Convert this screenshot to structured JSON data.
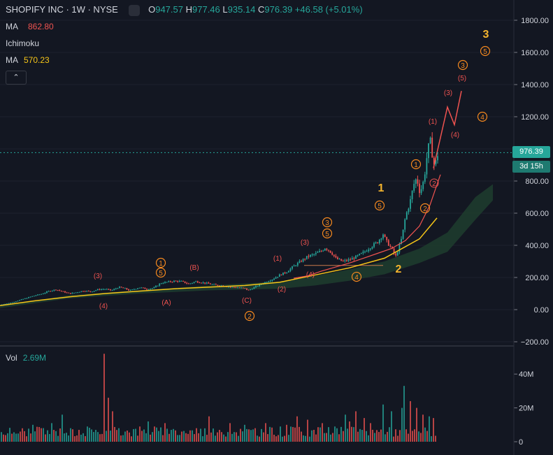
{
  "legend": {
    "symbol": "SHOPIFY INC · 1W · NYSE",
    "open_label": "O",
    "open": "947.57",
    "high_label": "H",
    "high": "977.46",
    "low_label": "L",
    "low": "935.14",
    "close_label": "C",
    "close": "976.39",
    "change": "+46.58 (+5.01%)"
  },
  "indicators": {
    "ma1_label": "MA",
    "ma1_value": "862.80",
    "ichimoku_label": "Ichimoku",
    "ma2_label": "MA",
    "ma2_value": "570.23",
    "collapse_glyph": "⌃"
  },
  "price_tag": {
    "price": "976.39",
    "countdown": "3d 15h"
  },
  "colors": {
    "background": "#131722",
    "up": "#26a69a",
    "down": "#ef5350",
    "ma_red": "#ef5350",
    "ma_yellow": "#f5c518",
    "cloud": "#1f3d2e",
    "wave_orange": "#f5891f",
    "wave_red": "#ef5350",
    "wave_gold": "#f5b52e"
  },
  "volume_panel": {
    "label": "Vol",
    "value": "2.69M"
  },
  "chart_data": {
    "type": "candlestick",
    "price_axis": {
      "ticks": [
        -200,
        0,
        200,
        400,
        600,
        800,
        1000,
        1200,
        1400,
        1600,
        1800
      ],
      "tick_labels": [
        "−200.00",
        "0.00",
        "200.00",
        "400.00",
        "600.00",
        "800.00",
        "1000.00",
        "1200.00",
        "1400.00",
        "1600.00",
        "1800.00"
      ]
    },
    "volume_axis": {
      "ticks": [
        0,
        20,
        40
      ],
      "tick_labels": [
        "0",
        "20M",
        "40M"
      ]
    },
    "current_price": 976.39,
    "price_anchors": [
      [
        0,
        30
      ],
      [
        10,
        38
      ],
      [
        20,
        48
      ],
      [
        30,
        62
      ],
      [
        40,
        75
      ],
      [
        50,
        88
      ],
      [
        60,
        98
      ],
      [
        70,
        115
      ],
      [
        80,
        125
      ],
      [
        90,
        112
      ],
      [
        100,
        100
      ],
      [
        110,
        108
      ],
      [
        120,
        118
      ],
      [
        130,
        112
      ],
      [
        140,
        125
      ],
      [
        150,
        128
      ],
      [
        160,
        120
      ],
      [
        170,
        140
      ],
      [
        180,
        130
      ],
      [
        185,
        118
      ],
      [
        190,
        125
      ],
      [
        200,
        138
      ],
      [
        210,
        128
      ],
      [
        220,
        135
      ],
      [
        230,
        165
      ],
      [
        240,
        172
      ],
      [
        250,
        178
      ],
      [
        260,
        175
      ],
      [
        270,
        160
      ],
      [
        280,
        175
      ],
      [
        290,
        168
      ],
      [
        300,
        160
      ],
      [
        310,
        152
      ],
      [
        320,
        148
      ],
      [
        330,
        140
      ],
      [
        340,
        138
      ],
      [
        350,
        132
      ],
      [
        355,
        120
      ],
      [
        360,
        130
      ],
      [
        370,
        152
      ],
      [
        380,
        172
      ],
      [
        390,
        190
      ],
      [
        400,
        215
      ],
      [
        410,
        235
      ],
      [
        420,
        270
      ],
      [
        430,
        300
      ],
      [
        440,
        330
      ],
      [
        450,
        345
      ],
      [
        460,
        365
      ],
      [
        465,
        385
      ],
      [
        470,
        370
      ],
      [
        475,
        350
      ],
      [
        480,
        320
      ],
      [
        490,
        300
      ],
      [
        500,
        310
      ],
      [
        510,
        330
      ],
      [
        520,
        355
      ],
      [
        530,
        390
      ],
      [
        540,
        420
      ],
      [
        548,
        470
      ],
      [
        552,
        430
      ],
      [
        560,
        380
      ],
      [
        566,
        330
      ],
      [
        570,
        380
      ],
      [
        575,
        450
      ],
      [
        580,
        580
      ],
      [
        586,
        660
      ],
      [
        592,
        780
      ],
      [
        596,
        820
      ],
      [
        600,
        740
      ],
      [
        604,
        760
      ],
      [
        608,
        860
      ],
      [
        612,
        1000
      ],
      [
        616,
        1050
      ],
      [
        619,
        940
      ],
      [
        622,
        880
      ],
      [
        625,
        960
      ],
      [
        628,
        976
      ]
    ],
    "ma_red": [
      [
        420,
        195
      ],
      [
        440,
        210
      ],
      [
        460,
        240
      ],
      [
        480,
        265
      ],
      [
        500,
        290
      ],
      [
        520,
        320
      ],
      [
        540,
        350
      ],
      [
        560,
        380
      ],
      [
        580,
        430
      ],
      [
        600,
        520
      ],
      [
        615,
        650
      ],
      [
        630,
        840
      ]
    ],
    "ma_yellow": [
      [
        0,
        25
      ],
      [
        50,
        55
      ],
      [
        100,
        80
      ],
      [
        150,
        100
      ],
      [
        200,
        115
      ],
      [
        250,
        130
      ],
      [
        300,
        140
      ],
      [
        350,
        150
      ],
      [
        400,
        170
      ],
      [
        450,
        215
      ],
      [
        500,
        260
      ],
      [
        550,
        320
      ],
      [
        600,
        440
      ],
      [
        625,
        570
      ]
    ],
    "cloud_upper": [
      [
        0,
        20
      ],
      [
        100,
        90
      ],
      [
        200,
        120
      ],
      [
        300,
        150
      ],
      [
        400,
        175
      ],
      [
        450,
        210
      ],
      [
        500,
        250
      ],
      [
        550,
        300
      ],
      [
        600,
        380
      ],
      [
        640,
        480
      ],
      [
        680,
        700
      ],
      [
        705,
        780
      ]
    ],
    "cloud_lower": [
      [
        0,
        10
      ],
      [
        100,
        70
      ],
      [
        200,
        100
      ],
      [
        300,
        120
      ],
      [
        400,
        130
      ],
      [
        450,
        150
      ],
      [
        500,
        180
      ],
      [
        550,
        220
      ],
      [
        600,
        290
      ],
      [
        640,
        360
      ],
      [
        680,
        560
      ],
      [
        705,
        680
      ]
    ],
    "projection": [
      [
        620,
        880
      ],
      [
        640,
        1260
      ],
      [
        650,
        1150
      ],
      [
        660,
        1360
      ]
    ],
    "support_line": {
      "x": [
        435,
        548
      ],
      "y": 275
    },
    "volume": [
      [
        10,
        5
      ],
      [
        30,
        6
      ],
      [
        47,
        10
      ],
      [
        60,
        8
      ],
      [
        75,
        11
      ],
      [
        88,
        16
      ],
      [
        100,
        8
      ],
      [
        112,
        7
      ],
      [
        125,
        9
      ],
      [
        137,
        7
      ],
      [
        150,
        52
      ],
      [
        154,
        26
      ],
      [
        160,
        18
      ],
      [
        170,
        8
      ],
      [
        180,
        6
      ],
      [
        200,
        9
      ],
      [
        213,
        12
      ],
      [
        220,
        9
      ],
      [
        235,
        11
      ],
      [
        245,
        7
      ],
      [
        260,
        6
      ],
      [
        280,
        8
      ],
      [
        300,
        15
      ],
      [
        315,
        7
      ],
      [
        330,
        11
      ],
      [
        350,
        10
      ],
      [
        365,
        8
      ],
      [
        380,
        11
      ],
      [
        400,
        9
      ],
      [
        410,
        10
      ],
      [
        425,
        15
      ],
      [
        440,
        13
      ],
      [
        460,
        11
      ],
      [
        480,
        9
      ],
      [
        493,
        16
      ],
      [
        500,
        12
      ],
      [
        510,
        18
      ],
      [
        520,
        14
      ],
      [
        530,
        11
      ],
      [
        548,
        22
      ],
      [
        560,
        18
      ],
      [
        575,
        20
      ],
      [
        579,
        33
      ],
      [
        586,
        24
      ],
      [
        595,
        20
      ],
      [
        605,
        16
      ],
      [
        615,
        15
      ],
      [
        620,
        14
      ]
    ],
    "wave_labels": {
      "orange_circled": [
        [
          "1",
          230,
          376
        ],
        [
          "5",
          230,
          390
        ],
        [
          "2",
          357,
          452
        ],
        [
          "3",
          468,
          318
        ],
        [
          "5",
          468,
          334
        ],
        [
          "4",
          510,
          396
        ],
        [
          "5",
          543,
          294
        ],
        [
          "1",
          595,
          235
        ],
        [
          "2",
          608,
          298
        ],
        [
          "4",
          690,
          167
        ],
        [
          "3",
          662,
          93
        ],
        [
          "5",
          694,
          73
        ]
      ],
      "red_circled": [
        [
          "2",
          621,
          262
        ]
      ],
      "red_text": [
        [
          "(3)",
          140,
          398
        ],
        [
          "(4)",
          148,
          441
        ],
        [
          "(A)",
          238,
          436
        ],
        [
          "(B)",
          278,
          386
        ],
        [
          "(C)",
          353,
          433
        ],
        [
          "(1)",
          397,
          373
        ],
        [
          "(2)",
          403,
          417
        ],
        [
          "(3)",
          436,
          350
        ],
        [
          "(4)",
          444,
          396
        ],
        [
          "(1)",
          619,
          177
        ],
        [
          "(3)",
          641,
          136
        ],
        [
          "(5)",
          661,
          115
        ],
        [
          "(4)",
          651,
          196
        ]
      ],
      "gold_big": [
        [
          "1",
          545,
          274
        ],
        [
          "2",
          570,
          390
        ],
        [
          "3",
          695,
          54
        ]
      ]
    }
  }
}
